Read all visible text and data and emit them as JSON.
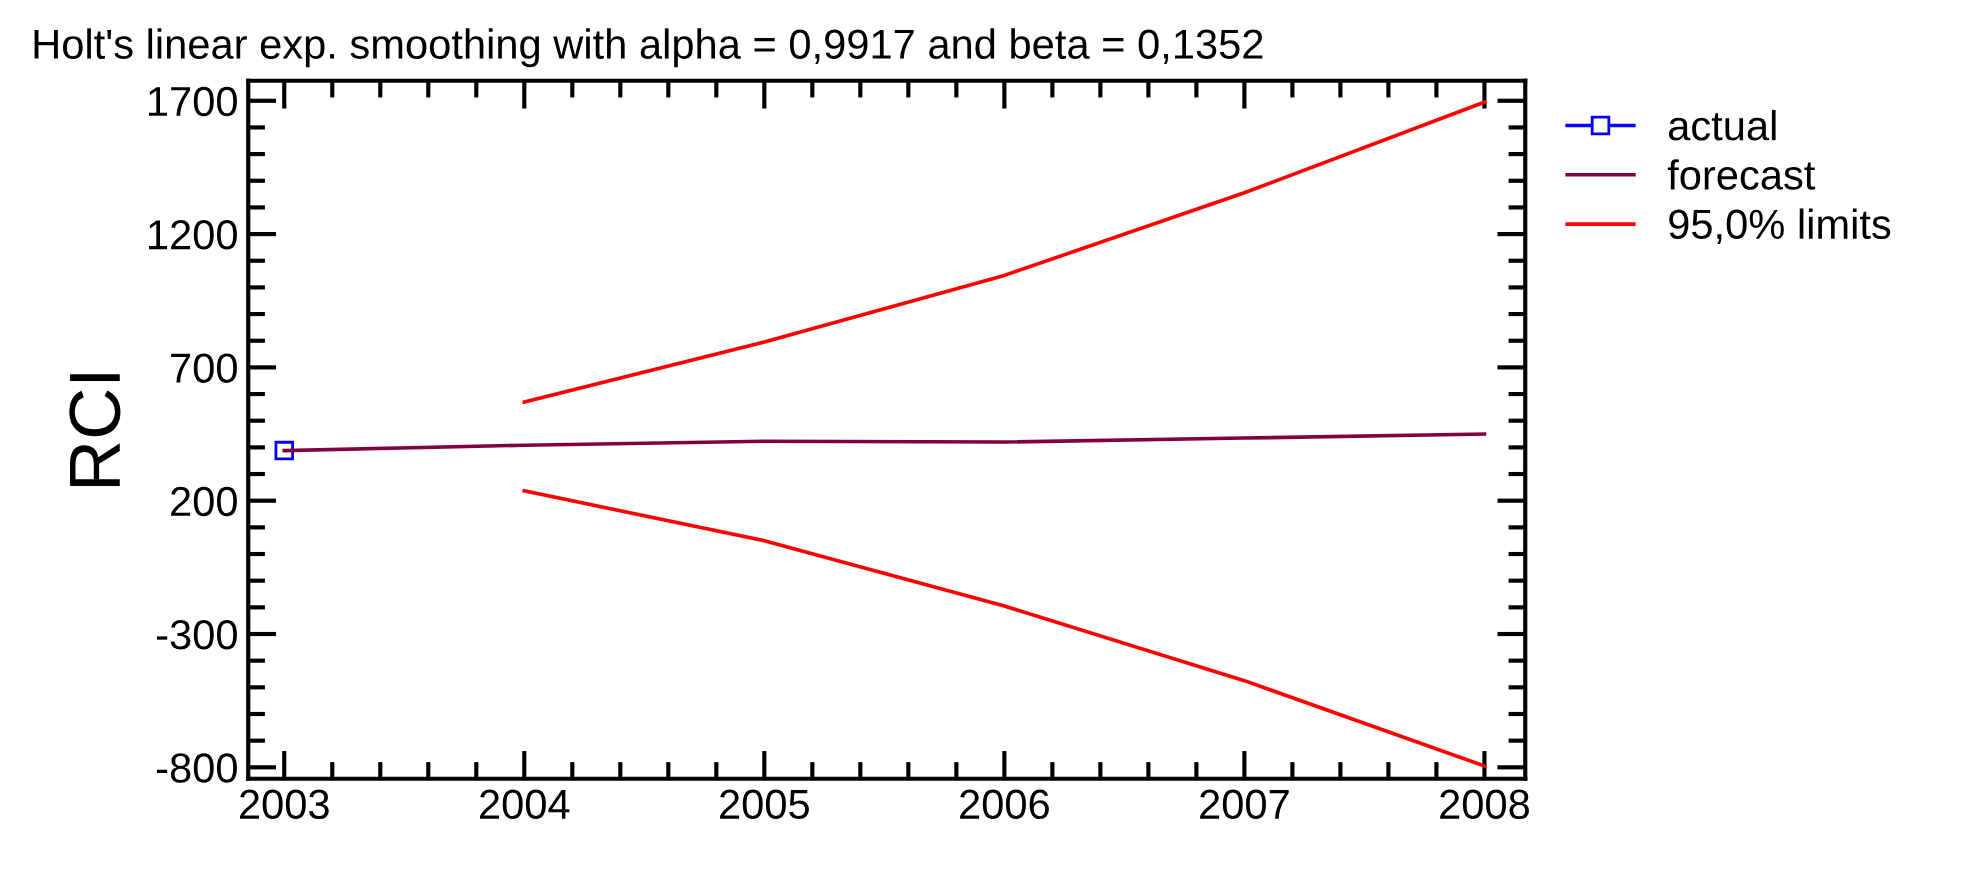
{
  "chart_data": {
    "type": "line",
    "title": "Holt's linear exp. smoothing with alpha = 0,9917 and beta = 0,1352",
    "ylabel": "RCI",
    "x": [
      2003,
      2004,
      2005,
      2006,
      2007,
      2008
    ],
    "series": [
      {
        "name": "actual",
        "color": "#0000ff",
        "marker": "square",
        "values": [
          388,
          null,
          null,
          null,
          null,
          null
        ]
      },
      {
        "name": "forecast",
        "color": "#800040",
        "marker": "none",
        "values": [
          388,
          408,
          423,
          420,
          435,
          450
        ]
      },
      {
        "name": "95,0% limits",
        "color": "#ff0000",
        "marker": "none",
        "values": [
          null,
          570,
          795,
          1045,
          1355,
          1695
        ]
      },
      {
        "color": "#ff0000",
        "marker": "none",
        "values": [
          null,
          237,
          50,
          -195,
          -475,
          -795
        ]
      }
    ],
    "xlim": [
      2002.85,
      2008.17
    ],
    "xticks": [
      2003,
      2004,
      2005,
      2006,
      2007,
      2008
    ],
    "ylim": [
      -843,
      1775
    ],
    "yticks": [
      -800,
      -300,
      200,
      700,
      1200,
      1700
    ],
    "grid": false,
    "legend": "top right",
    "line_style": "solid"
  }
}
